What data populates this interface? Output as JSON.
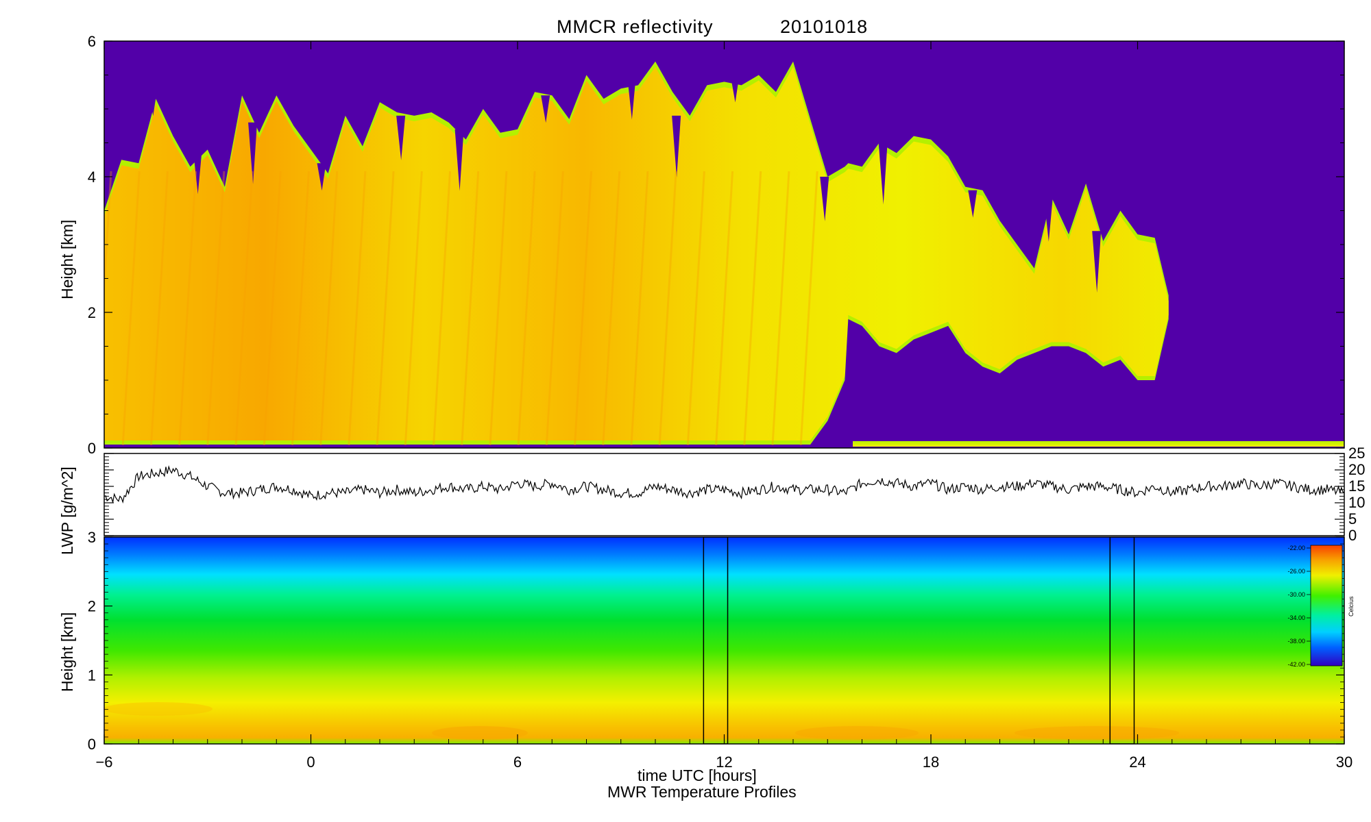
{
  "figure": {
    "title": "MMCR reflectivity",
    "date": "20101018",
    "xlabel": "time UTC [hours]",
    "caption": "MWR Temperature Profiles"
  },
  "colors": {
    "background_purple": "#5200a8",
    "cloud_yellow": "#f5f000",
    "cloud_orange": "#f8b400",
    "cloud_edge": "#b4f000",
    "trace": "#000000"
  },
  "chart_data": [
    {
      "type": "heatmap",
      "name": "reflectivity",
      "ylabel": "Height [km]",
      "xlim": [
        -6,
        30
      ],
      "ylim": [
        0,
        6
      ],
      "xticks": [
        -6,
        0,
        6,
        12,
        18,
        24,
        30
      ],
      "yticks": [
        0,
        2,
        4,
        6
      ],
      "cloud_profile": {
        "x": [
          -6,
          -5.5,
          -5,
          -4.5,
          -4,
          -3.5,
          -3,
          -2.5,
          -2,
          -1.5,
          -1,
          -0.5,
          0,
          0.5,
          1,
          1.5,
          2,
          2.5,
          3,
          3.5,
          4,
          4.5,
          5,
          5.5,
          6,
          6.5,
          7,
          7.5,
          8,
          8.5,
          9,
          9.5,
          10,
          10.5,
          11,
          11.5,
          12,
          12.5,
          13,
          13.5,
          14,
          14.5,
          15,
          15.5,
          15.6,
          16,
          16.5,
          17,
          17.5,
          18,
          18.5,
          19,
          19.5,
          20,
          20.5,
          21,
          21.5,
          22,
          22.5,
          23,
          23.5,
          24,
          24.5,
          24.9
        ],
        "top_km": [
          3.5,
          4.4,
          4.2,
          5.3,
          4.6,
          4.3,
          4.4,
          4.0,
          5.2,
          4.8,
          5.2,
          4.9,
          4.4,
          4.2,
          4.9,
          4.6,
          5.1,
          5.1,
          4.9,
          5.1,
          4.8,
          4.7,
          5.0,
          4.8,
          4.7,
          5.4,
          5.2,
          5.0,
          5.5,
          5.3,
          5.3,
          5.5,
          5.7,
          5.4,
          4.9,
          5.5,
          5.4,
          5.5,
          5.5,
          5.4,
          5.7,
          5.0,
          4.0,
          4.3,
          4.2,
          4.3,
          4.5,
          4.5,
          4.6,
          4.7,
          4.3,
          4.0,
          3.8,
          3.5,
          3.0,
          2.8,
          3.7,
          3.3,
          3.9,
          3.2,
          3.5,
          3.3,
          3.1,
          2.4
        ],
        "base_km": [
          0.05,
          0.05,
          0.05,
          0.05,
          0.05,
          0.05,
          0.05,
          0.05,
          0.05,
          0.05,
          0.05,
          0.05,
          0.05,
          0.05,
          0.05,
          0.05,
          0.05,
          0.05,
          0.05,
          0.05,
          0.05,
          0.05,
          0.05,
          0.05,
          0.05,
          0.05,
          0.05,
          0.05,
          0.05,
          0.05,
          0.05,
          0.05,
          0.05,
          0.05,
          0.05,
          0.05,
          0.05,
          0.05,
          0.05,
          0.05,
          0.05,
          0.05,
          0.4,
          1.0,
          1.9,
          1.8,
          1.5,
          1.4,
          1.6,
          1.7,
          1.8,
          1.4,
          1.2,
          1.1,
          1.3,
          1.4,
          1.5,
          1.5,
          1.4,
          1.2,
          1.3,
          1.0,
          1.0,
          1.9
        ]
      }
    },
    {
      "type": "line",
      "name": "LWP",
      "ylabel": "LWP [g/m^2]",
      "xlim": [
        -6,
        30
      ],
      "ylim": [
        0,
        25
      ],
      "yticks": [
        0,
        5,
        10,
        15,
        20,
        25
      ],
      "x": [
        -6,
        -5.5,
        -5,
        -4.5,
        -4,
        -3.5,
        -3,
        -2.5,
        -2,
        -1.5,
        -1,
        -0.5,
        0,
        0.5,
        1,
        1.5,
        2,
        2.5,
        3,
        3.5,
        4,
        4.5,
        5,
        5.5,
        6,
        6.5,
        7,
        7.5,
        8,
        8.5,
        9,
        9.5,
        10,
        10.5,
        11,
        11.5,
        12,
        12.5,
        13,
        13.5,
        14,
        14.5,
        15,
        15.5,
        16,
        16.5,
        17,
        17.5,
        18,
        18.5,
        19,
        19.5,
        20,
        20.5,
        21,
        21.5,
        22,
        22.5,
        23,
        23.5,
        24,
        24.5,
        25,
        25.5,
        26,
        26.5,
        27,
        27.5,
        28,
        28.5,
        29,
        29.5,
        30
      ],
      "values": [
        12,
        11,
        18,
        19,
        20,
        18,
        15,
        13,
        13,
        14,
        15,
        14,
        12,
        13,
        13,
        14,
        13,
        14,
        13,
        14,
        15,
        14,
        15,
        14,
        16,
        15,
        16,
        14,
        15,
        14,
        13,
        13,
        15,
        14,
        13,
        14,
        14,
        13,
        14,
        15,
        14,
        14,
        14,
        13,
        16,
        17,
        16,
        15,
        16,
        14,
        15,
        14,
        15,
        15,
        16,
        15,
        14,
        15,
        15,
        14,
        13,
        15,
        13,
        14,
        15,
        15,
        16,
        15,
        16,
        15,
        14,
        14,
        13
      ]
    },
    {
      "type": "heatmap",
      "name": "MWR temperature",
      "ylabel": "Height [km]",
      "xlim": [
        -6,
        30
      ],
      "ylim": [
        0,
        3
      ],
      "yticks": [
        0,
        1,
        2,
        3
      ],
      "data_gaps_hours": [
        [
          11.4,
          12.1
        ],
        [
          23.2,
          23.9
        ]
      ],
      "colorbar": {
        "label": "Celcius",
        "ticks": [
          "-22.00",
          "-26.00",
          "-30.00",
          "-34.00",
          "-38.00",
          "-42.00"
        ]
      }
    }
  ]
}
